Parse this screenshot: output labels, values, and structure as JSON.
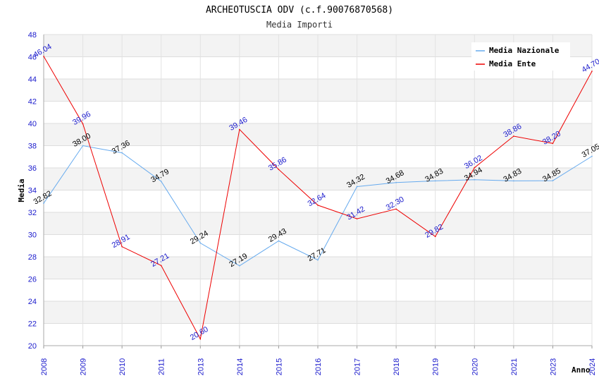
{
  "chart_data": {
    "type": "line",
    "title": "ARCHEOTUSCIA ODV (c.f.90076870568)",
    "subtitle": "Media Importi",
    "xlabel": "Anno",
    "ylabel": "Media",
    "ylim": [
      20,
      48
    ],
    "y_ticks": [
      "20",
      "22",
      "24",
      "26",
      "28",
      "30",
      "32",
      "34",
      "36",
      "38",
      "40",
      "42",
      "44",
      "46",
      "48"
    ],
    "x": [
      "2008",
      "2009",
      "2010",
      "2011",
      "2013",
      "2014",
      "2015",
      "2016",
      "2017",
      "2018",
      "2019",
      "2020",
      "2021",
      "2023",
      "2024"
    ],
    "grid": true,
    "legend_position": "top-right",
    "series": [
      {
        "name": "Media Nazionale",
        "color": "#66aaee",
        "values": [
          32.82,
          38.0,
          37.36,
          34.79,
          29.24,
          27.19,
          29.43,
          27.71,
          34.32,
          34.68,
          34.83,
          34.94,
          34.83,
          34.85,
          37.05
        ],
        "labels": [
          "32.82",
          "38.00",
          "37.36",
          "34.79",
          "29.24",
          "27.19",
          "29.43",
          "27.71",
          "34.32",
          "34.68",
          "34.83",
          "34.94",
          "34.83",
          "34.85",
          "37.05"
        ]
      },
      {
        "name": "Media Ente",
        "color": "#ee0000",
        "values": [
          46.04,
          39.96,
          28.91,
          27.21,
          20.6,
          39.46,
          35.86,
          32.64,
          31.42,
          32.3,
          29.82,
          36.02,
          38.86,
          38.2,
          44.7
        ],
        "labels": [
          "46.04",
          "39.96",
          "28.91",
          "27.21",
          "20.60",
          "39.46",
          "35.86",
          "32.64",
          "31.42",
          "32.30",
          "29.82",
          "36.02",
          "38.86",
          "38.20",
          "44.70"
        ]
      }
    ]
  }
}
